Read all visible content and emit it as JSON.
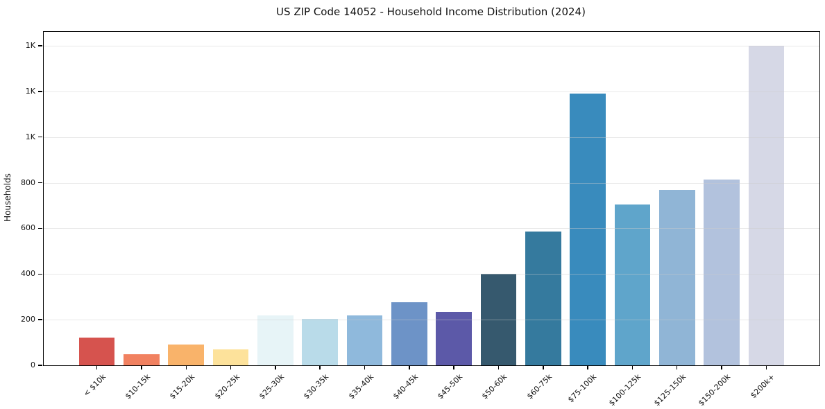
{
  "chart_data": {
    "type": "bar",
    "title": "US ZIP Code 14052 - Household Income Distribution (2024)",
    "xlabel": "",
    "ylabel": "Households",
    "categories": [
      "< $10k",
      "$10-15k",
      "$15-20k",
      "$20-25k",
      "$25-30k",
      "$30-35k",
      "$35-40k",
      "$40-45k",
      "$45-50k",
      "$50-60k",
      "$60-75k",
      "$75-100k",
      "$100-125k",
      "$125-150k",
      "$150-200k",
      "$200k+"
    ],
    "values": [
      122,
      48,
      90,
      70,
      218,
      205,
      220,
      275,
      235,
      400,
      585,
      1190,
      705,
      770,
      815,
      1400
    ],
    "bar_colors": [
      "#d6534e",
      "#f18160",
      "#f9b36a",
      "#fde29b",
      "#e7f4f7",
      "#b9dbe9",
      "#8fb9dc",
      "#6d93c7",
      "#5c59a8",
      "#36596e",
      "#357a9e",
      "#398bbd",
      "#5fa5cb",
      "#90b5d6",
      "#b2c2dd",
      "#d6d8e6"
    ],
    "ylim": [
      0,
      1461
    ],
    "yticks": [
      {
        "value": 0,
        "label": "0"
      },
      {
        "value": 200,
        "label": "200"
      },
      {
        "value": 400,
        "label": "400"
      },
      {
        "value": 600,
        "label": "600"
      },
      {
        "value": 800,
        "label": "800"
      },
      {
        "value": 1000,
        "label": "1K"
      },
      {
        "value": 1200,
        "label": "1K"
      },
      {
        "value": 1400,
        "label": "1K"
      }
    ],
    "grid": "horizontal",
    "legend": "none",
    "bar_width_fraction": 0.8
  }
}
